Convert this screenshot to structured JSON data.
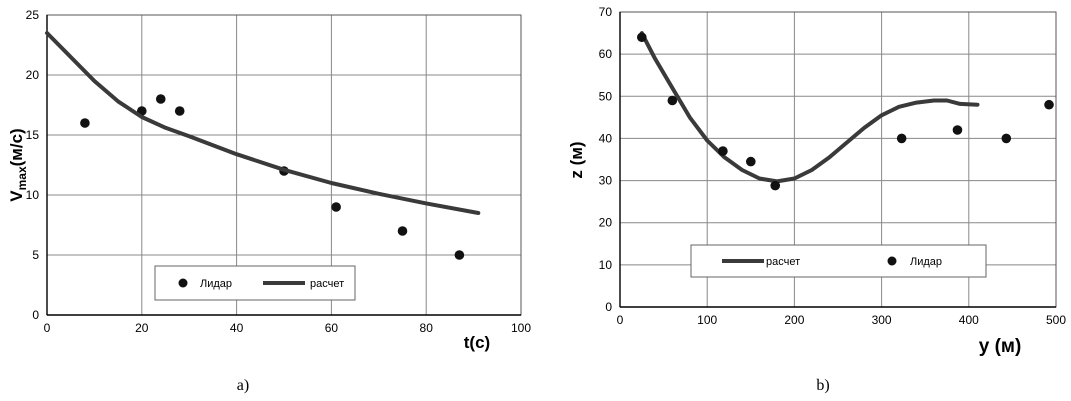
{
  "chart_data": [
    {
      "type": "scatter",
      "panel_label": "a)",
      "xlabel": "t(c)",
      "ylabel_main": "V",
      "ylabel_sub": "max",
      "ylabel_unit": "(м/с)",
      "xlim": [
        0,
        100
      ],
      "ylim": [
        0,
        25
      ],
      "xticks": [
        "0",
        "20",
        "40",
        "60",
        "80",
        "100"
      ],
      "yticks": [
        "0",
        "5",
        "10",
        "15",
        "20",
        "25"
      ],
      "grid": true,
      "legend_position": "bottom-center",
      "series": [
        {
          "name": "Лидар",
          "kind": "scatter",
          "x": [
            8,
            20,
            24,
            28,
            50,
            61,
            75,
            87
          ],
          "y": [
            16,
            17,
            18,
            17,
            12,
            9,
            7,
            5
          ]
        },
        {
          "name": "расчет",
          "kind": "line",
          "x": [
            0,
            5,
            10,
            15,
            20,
            25,
            30,
            40,
            50,
            60,
            70,
            80,
            91
          ],
          "y": [
            23.5,
            21.5,
            19.5,
            17.8,
            16.5,
            15.6,
            14.9,
            13.4,
            12.1,
            11.0,
            10.1,
            9.3,
            8.5
          ]
        }
      ]
    },
    {
      "type": "scatter",
      "panel_label": "b)",
      "xlabel": "y (м)",
      "ylabel": "z (м)",
      "xlim": [
        0,
        500
      ],
      "ylim": [
        0,
        70
      ],
      "xticks": [
        "0",
        "100",
        "200",
        "300",
        "400",
        "500"
      ],
      "yticks": [
        "0",
        "10",
        "20",
        "30",
        "40",
        "50",
        "60",
        "70"
      ],
      "grid": true,
      "legend_position": "bottom-center",
      "series": [
        {
          "name": "расчет",
          "kind": "line",
          "x": [
            25,
            40,
            60,
            80,
            100,
            120,
            140,
            160,
            180,
            200,
            220,
            240,
            260,
            280,
            300,
            320,
            340,
            360,
            375,
            390,
            410
          ],
          "y": [
            65,
            59,
            52,
            45,
            39.5,
            35.5,
            32.5,
            30.5,
            29.8,
            30.5,
            32.5,
            35.5,
            39,
            42.5,
            45.5,
            47.5,
            48.5,
            49,
            49,
            48.2,
            48
          ]
        },
        {
          "name": "Лидар",
          "kind": "scatter",
          "x": [
            25,
            60,
            118,
            150,
            178,
            323,
            387,
            443,
            492
          ],
          "y": [
            64,
            49,
            37,
            34.5,
            28.8,
            40,
            42,
            40,
            48
          ]
        }
      ]
    }
  ]
}
